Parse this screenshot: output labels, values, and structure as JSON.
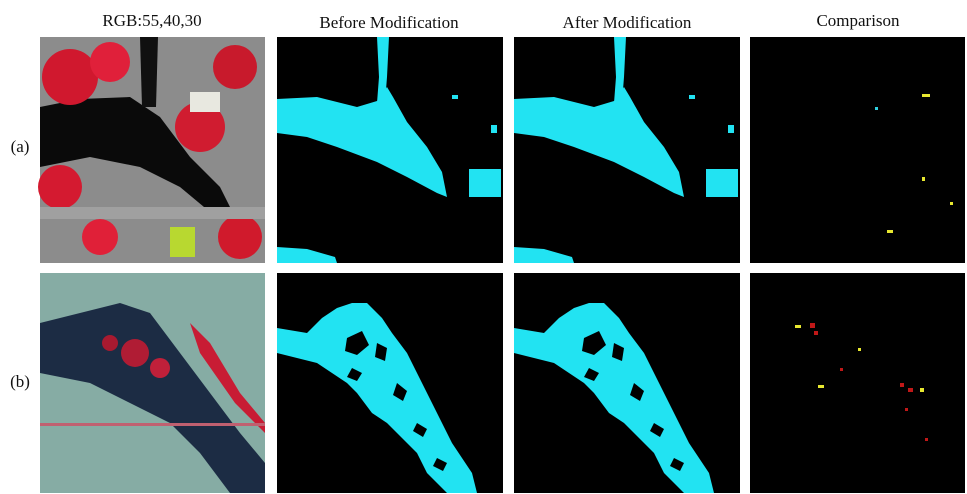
{
  "columns": [
    "RGB:55,40,30",
    "Before Modification",
    "After Modification",
    "Comparison"
  ],
  "rows": [
    "(a)",
    "(b)"
  ]
}
